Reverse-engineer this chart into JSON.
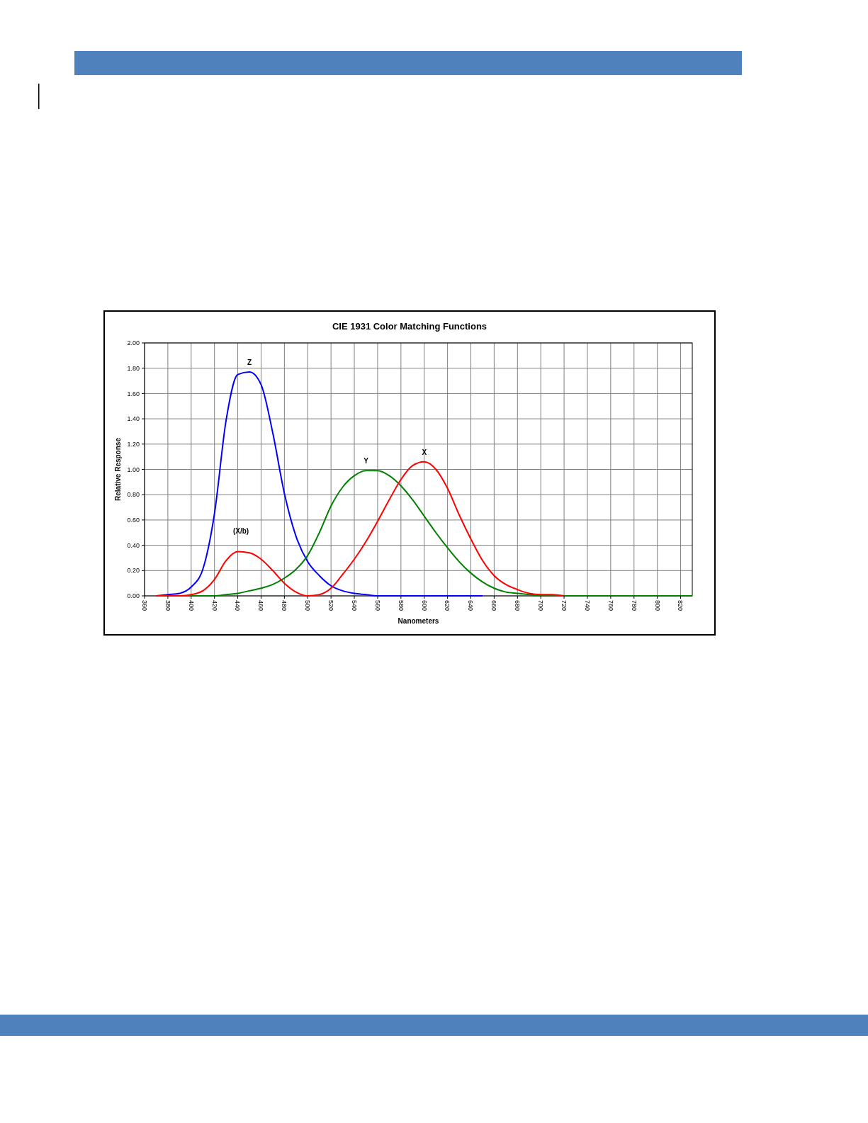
{
  "chart_data": {
    "type": "line",
    "title": "CIE 1931 Color Matching Functions",
    "xlabel": "Nanometers",
    "ylabel": "Relative Response",
    "xlim": [
      360,
      830
    ],
    "xticks": [
      360,
      380,
      400,
      420,
      440,
      460,
      480,
      500,
      520,
      540,
      560,
      580,
      600,
      620,
      640,
      660,
      680,
      700,
      720,
      740,
      760,
      780,
      800,
      820
    ],
    "ylim": [
      0,
      2
    ],
    "yticks": [
      {
        "value": 0,
        "label": "0.00"
      },
      {
        "value": 0.2,
        "label": "0.20"
      },
      {
        "value": 0.4,
        "label": "0.40"
      },
      {
        "value": 0.6,
        "label": "0.60"
      },
      {
        "value": 0.8,
        "label": "0.80"
      },
      {
        "value": 1,
        "label": "1.00"
      },
      {
        "value": 1.2,
        "label": "1.20"
      },
      {
        "value": 1.4,
        "label": "1.40"
      },
      {
        "value": 1.6,
        "label": "1.60"
      },
      {
        "value": 1.8,
        "label": "1.80"
      },
      {
        "value": 2,
        "label": "2.00"
      }
    ],
    "grid": true,
    "marker": "none",
    "line_style": "solid",
    "series": [
      {
        "name": "Z",
        "color": "#0000ff",
        "x": [
          370,
          380,
          390,
          400,
          410,
          420,
          430,
          440,
          450,
          460,
          470,
          480,
          490,
          500,
          510,
          520,
          530,
          540,
          550,
          560,
          570,
          580,
          590,
          600,
          610,
          620,
          630,
          640,
          650
        ],
        "values": [
          0,
          0.01,
          0.02,
          0.07,
          0.21,
          0.65,
          1.39,
          1.75,
          1.77,
          1.67,
          1.29,
          0.81,
          0.47,
          0.27,
          0.16,
          0.08,
          0.04,
          0.02,
          0.01,
          0,
          0,
          0,
          0,
          0,
          0,
          0,
          0,
          0,
          0
        ]
      },
      {
        "name": "Y",
        "color": "#008000",
        "x": [
          370,
          380,
          390,
          400,
          410,
          420,
          430,
          440,
          450,
          460,
          470,
          480,
          490,
          500,
          510,
          520,
          530,
          540,
          550,
          560,
          570,
          580,
          590,
          600,
          610,
          620,
          630,
          640,
          650,
          660,
          670,
          680,
          690,
          700,
          710,
          720,
          740,
          760,
          780,
          800,
          830
        ],
        "values": [
          0,
          0,
          0,
          0,
          0,
          0,
          0.01,
          0.02,
          0.04,
          0.06,
          0.09,
          0.14,
          0.21,
          0.32,
          0.5,
          0.71,
          0.86,
          0.95,
          0.99,
          0.99,
          0.95,
          0.87,
          0.76,
          0.63,
          0.5,
          0.38,
          0.27,
          0.18,
          0.11,
          0.06,
          0.03,
          0.02,
          0.01,
          0,
          0,
          0,
          0,
          0,
          0,
          0,
          0
        ]
      },
      {
        "name": "X",
        "color": "#ff0000",
        "x": [
          370,
          380,
          390,
          400,
          410,
          420,
          430,
          440,
          450,
          460,
          470,
          480,
          490,
          500,
          510,
          520,
          530,
          540,
          550,
          560,
          570,
          580,
          590,
          600,
          610,
          620,
          630,
          640,
          650,
          660,
          670,
          680,
          690,
          700,
          710,
          720
        ],
        "values": [
          0,
          0,
          0,
          0.01,
          0.04,
          0.13,
          0.28,
          0.35,
          0.34,
          0.29,
          0.2,
          0.1,
          0.03,
          0,
          0.01,
          0.06,
          0.17,
          0.29,
          0.43,
          0.59,
          0.76,
          0.92,
          1.03,
          1.06,
          1,
          0.85,
          0.64,
          0.45,
          0.28,
          0.16,
          0.09,
          0.05,
          0.02,
          0.01,
          0.01,
          0
        ]
      }
    ],
    "annotations": [
      "(X/b)"
    ]
  }
}
